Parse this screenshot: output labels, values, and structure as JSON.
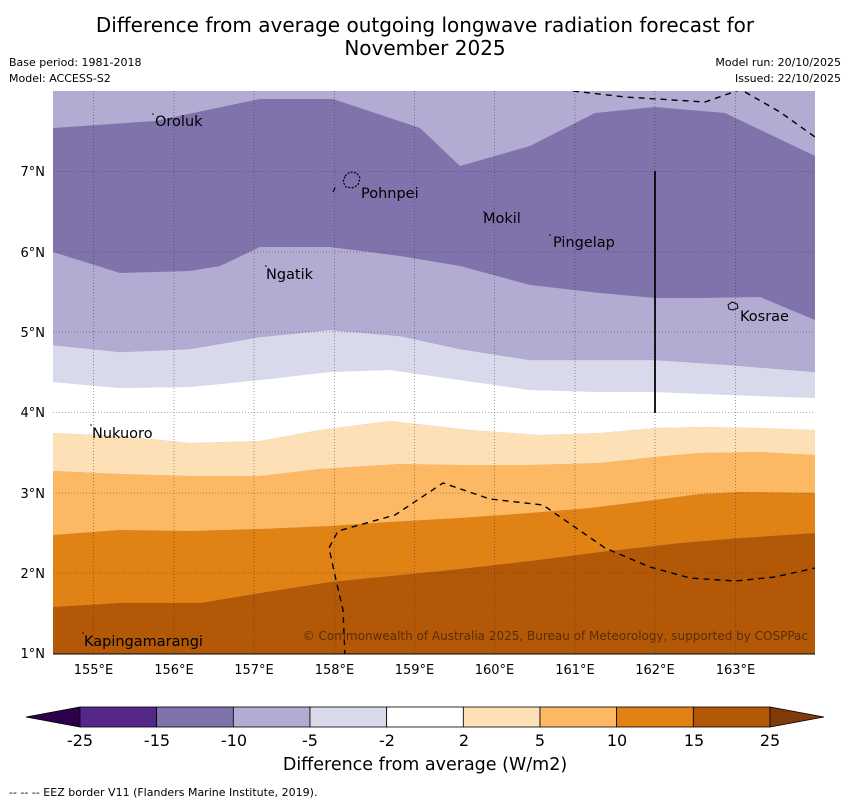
{
  "title": {
    "line1": "Difference from average outgoing longwave radiation forecast for",
    "line2": "November 2025"
  },
  "meta": {
    "base_period": "Base period: 1981-2018",
    "model": "Model: ACCESS-S2",
    "model_run": "Model run: 20/10/2025",
    "issued": "Issued: 22/10/2025"
  },
  "map": {
    "lon_range": [
      154.5,
      164.0
    ],
    "lat_range": [
      1.0,
      8.0
    ],
    "lon_ticks": [
      "155°E",
      "156°E",
      "157°E",
      "158°E",
      "159°E",
      "160°E",
      "161°E",
      "162°E",
      "163°E"
    ],
    "lat_ticks": [
      "7°N",
      "6°N",
      "5°N",
      "4°N",
      "3°N",
      "2°N",
      "1°N"
    ],
    "places": [
      {
        "name": "Oroluk",
        "lon": 155.75,
        "lat": 7.6
      },
      {
        "name": "Pohnpei",
        "lon": 158.3,
        "lat": 6.8
      },
      {
        "name": "Mokil",
        "lon": 159.9,
        "lat": 6.38
      },
      {
        "name": "Pingelap",
        "lon": 160.75,
        "lat": 6.15
      },
      {
        "name": "Ngatik",
        "lon": 157.15,
        "lat": 5.75
      },
      {
        "name": "Kosrae",
        "lon": 163.0,
        "lat": 5.3
      },
      {
        "name": "Nukuoro",
        "lon": 154.95,
        "lat": 3.8
      },
      {
        "name": "Kapingamarangi",
        "lon": 154.85,
        "lat": 1.1
      }
    ],
    "copyright": "© Commonwealth of Australia 2025, Bureau of Meteorology, supported by COSPPac"
  },
  "colorbar": {
    "tick_labels": [
      "-25",
      "-15",
      "-10",
      "-5",
      "-2",
      "2",
      "5",
      "10",
      "15",
      "25"
    ],
    "colors": [
      "#2d004b",
      "#542788",
      "#8073ac",
      "#b2abd2",
      "#d8daeb",
      "#ffffff",
      "#fee0b6",
      "#fdb863",
      "#e08214",
      "#b35806",
      "#7f3b08"
    ],
    "title": "Difference from average (W/m2)"
  },
  "footer": "--  --  -- EEZ border V11 (Flanders Marine Institute, 2019)."
}
